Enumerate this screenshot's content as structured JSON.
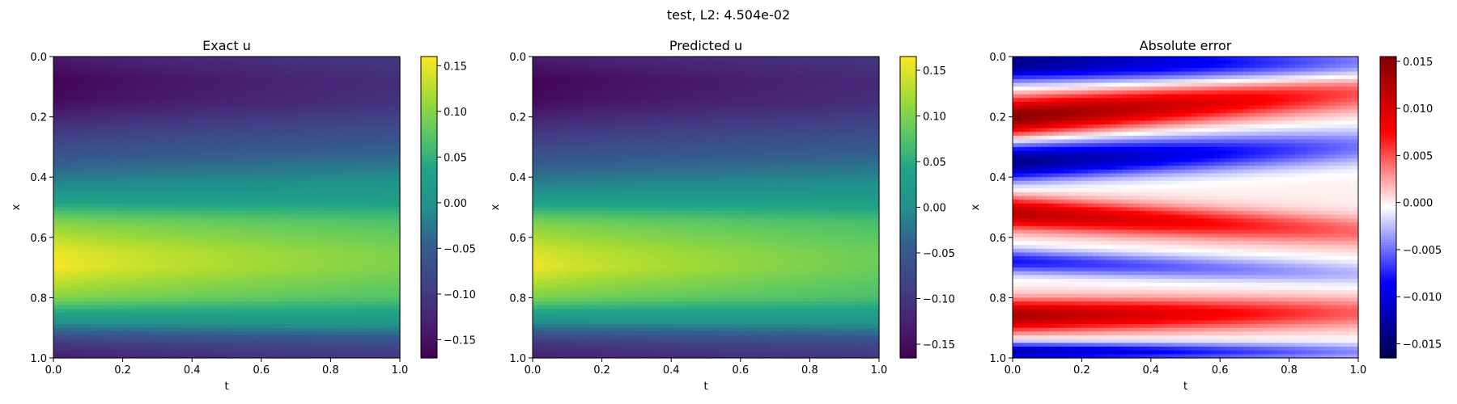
{
  "figure": {
    "suptitle": "test, L2: 4.504e-02"
  },
  "chart_data": [
    {
      "type": "heatmap",
      "title": "Exact u",
      "xlabel": "t",
      "ylabel": "x",
      "xlim": [
        0.0,
        1.0
      ],
      "ylim": [
        1.0,
        0.0
      ],
      "xticks": [
        "0.0",
        "0.2",
        "0.4",
        "0.6",
        "0.8",
        "1.0"
      ],
      "yticks": [
        "0.0",
        "0.2",
        "0.4",
        "0.6",
        "0.8",
        "1.0"
      ],
      "colormap": "viridis",
      "colorbar": {
        "vmin": -0.17,
        "vmax": 0.16,
        "ticks": [
          0.15,
          0.1,
          0.05,
          0.0,
          -0.05,
          -0.1,
          -0.15
        ],
        "ticklabels": [
          "0.15",
          "0.10",
          "0.05",
          "0.00",
          "−0.05",
          "−0.10",
          "−0.15"
        ]
      },
      "profile": {
        "x": [
          0.0,
          0.08,
          0.15,
          0.25,
          0.35,
          0.45,
          0.55,
          0.65,
          0.7,
          0.8,
          0.88,
          0.95,
          1.0
        ],
        "u_t0": [
          -0.14,
          -0.17,
          -0.16,
          -0.1,
          -0.05,
          0.0,
          0.1,
          0.155,
          0.16,
          0.1,
          0.0,
          -0.1,
          -0.14
        ],
        "u_t1": [
          -0.1,
          -0.115,
          -0.11,
          -0.07,
          -0.03,
          0.01,
          0.07,
          0.095,
          0.095,
          0.07,
          0.01,
          -0.07,
          -0.1
        ]
      }
    },
    {
      "type": "heatmap",
      "title": "Predicted u",
      "xlabel": "t",
      "ylabel": "x",
      "xlim": [
        0.0,
        1.0
      ],
      "ylim": [
        1.0,
        0.0
      ],
      "xticks": [
        "0.0",
        "0.2",
        "0.4",
        "0.6",
        "0.8",
        "1.0"
      ],
      "yticks": [
        "0.0",
        "0.2",
        "0.4",
        "0.6",
        "0.8",
        "1.0"
      ],
      "colormap": "viridis",
      "colorbar": {
        "vmin": -0.165,
        "vmax": 0.165,
        "ticks": [
          0.15,
          0.1,
          0.05,
          0.0,
          -0.05,
          -0.1,
          -0.15
        ],
        "ticklabels": [
          "0.15",
          "0.10",
          "0.05",
          "0.00",
          "−0.05",
          "−0.10",
          "−0.15"
        ]
      },
      "profile": {
        "x": [
          0.0,
          0.08,
          0.15,
          0.25,
          0.35,
          0.45,
          0.55,
          0.65,
          0.7,
          0.8,
          0.88,
          0.95,
          1.0
        ],
        "u_t0": [
          -0.13,
          -0.165,
          -0.155,
          -0.1,
          -0.05,
          0.0,
          0.1,
          0.15,
          0.16,
          0.1,
          0.0,
          -0.1,
          -0.13
        ],
        "u_t1": [
          -0.1,
          -0.115,
          -0.11,
          -0.07,
          -0.03,
          0.01,
          0.07,
          0.09,
          0.09,
          0.07,
          0.01,
          -0.07,
          -0.1
        ]
      }
    },
    {
      "type": "heatmap",
      "title": "Absolute error",
      "xlabel": "t",
      "ylabel": "x",
      "xlim": [
        0.0,
        1.0
      ],
      "ylim": [
        1.0,
        0.0
      ],
      "xticks": [
        "0.0",
        "0.2",
        "0.4",
        "0.6",
        "0.8",
        "1.0"
      ],
      "yticks": [
        "0.0",
        "0.2",
        "0.4",
        "0.6",
        "0.8",
        "1.0"
      ],
      "colormap": "seismic",
      "colorbar": {
        "vmin": -0.0165,
        "vmax": 0.0155,
        "ticks": [
          0.015,
          0.01,
          0.005,
          0.0,
          -0.005,
          -0.01,
          -0.015
        ],
        "ticklabels": [
          "0.015",
          "0.010",
          "0.005",
          "0.000",
          "−0.005",
          "−0.010",
          "−0.015"
        ]
      },
      "bands": [
        {
          "x_t0": 0.02,
          "x_t1": 0.02,
          "width": 0.06,
          "amplitude": -0.014
        },
        {
          "x_t0": 0.2,
          "x_t1": 0.12,
          "width": 0.06,
          "amplitude": 0.015
        },
        {
          "x_t0": 0.35,
          "x_t1": 0.3,
          "width": 0.06,
          "amplitude": -0.014
        },
        {
          "x_t0": 0.52,
          "x_t1": 0.58,
          "width": 0.05,
          "amplitude": 0.012
        },
        {
          "x_t0": 0.68,
          "x_t1": 0.72,
          "width": 0.04,
          "amplitude": -0.008
        },
        {
          "x_t0": 0.86,
          "x_t1": 0.85,
          "width": 0.05,
          "amplitude": 0.013
        },
        {
          "x_t0": 0.98,
          "x_t1": 0.98,
          "width": 0.03,
          "amplitude": -0.012
        }
      ]
    }
  ]
}
